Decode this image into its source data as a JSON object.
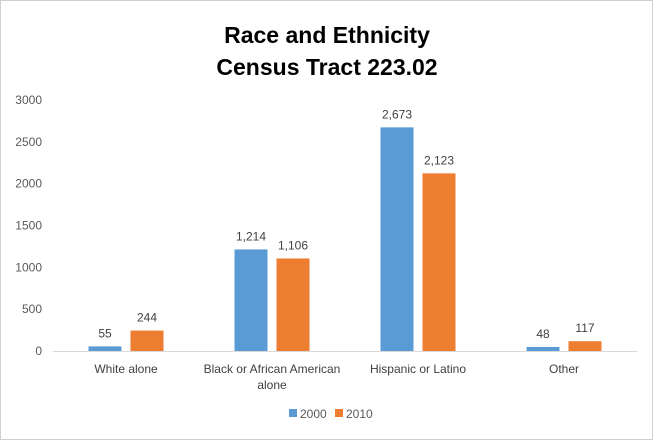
{
  "chart_data": {
    "type": "bar",
    "title_lines": [
      "Race and Ethnicity",
      "Census Tract 223.02"
    ],
    "categories": [
      [
        "White alone"
      ],
      [
        "Black or African American",
        "alone"
      ],
      [
        "Hispanic or Latino"
      ],
      [
        "Other"
      ]
    ],
    "series": [
      {
        "name": "2000",
        "color": "#5B9BD5",
        "values": [
          55,
          1214,
          2673,
          48
        ],
        "labels": [
          "55",
          "1,214",
          "2,673",
          "48"
        ]
      },
      {
        "name": "2010",
        "color": "#ED7D31",
        "values": [
          244,
          1106,
          2123,
          117
        ],
        "labels": [
          "244",
          "1,106",
          "2,123",
          "117"
        ]
      }
    ],
    "ylim": [
      0,
      3000
    ],
    "yticks": [
      "0",
      "500",
      "1000",
      "1500",
      "2000",
      "2500",
      "3000"
    ],
    "grid": false,
    "legend_position": "bottom"
  }
}
